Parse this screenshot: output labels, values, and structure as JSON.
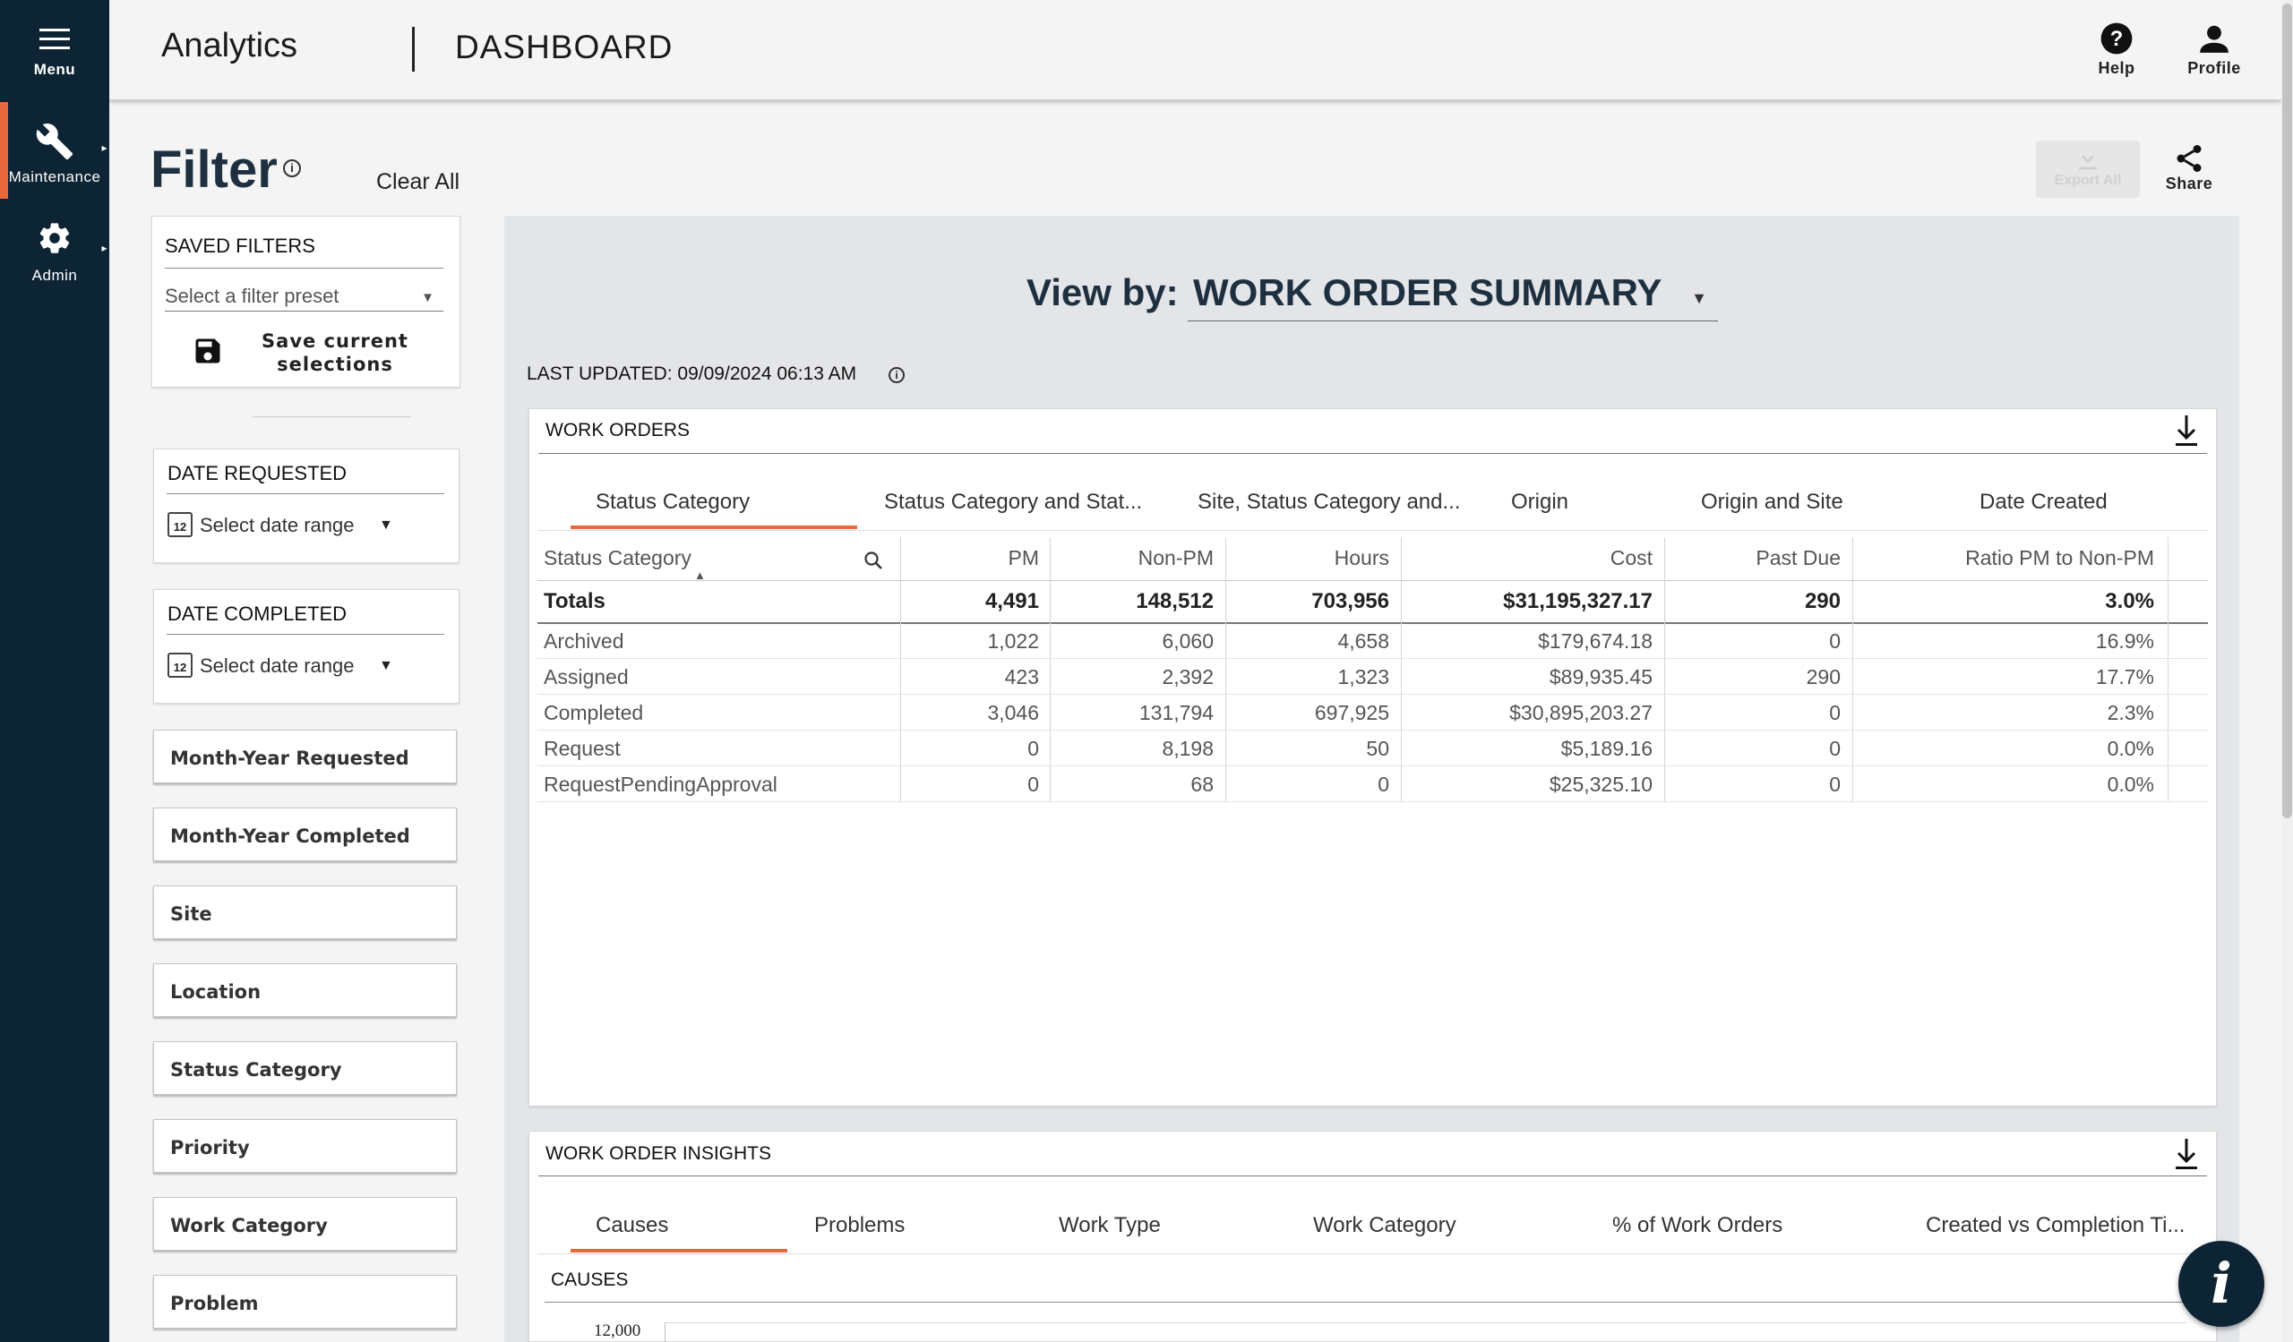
{
  "nav": {
    "menu": "Menu",
    "items": [
      {
        "label": "Maintenance",
        "icon": "wrench-icon"
      },
      {
        "label": "Admin",
        "icon": "gear-icon"
      }
    ]
  },
  "header": {
    "app_title": "Analytics",
    "page_title": "DASHBOARD",
    "help_label": "Help",
    "profile_label": "Profile"
  },
  "filter": {
    "title": "Filter",
    "clear_all": "Clear All",
    "saved_filters": {
      "heading": "SAVED FILTERS",
      "placeholder": "Select a filter preset",
      "save_label_1": "Save current",
      "save_label_2": "selections"
    },
    "date_requested": {
      "heading": "DATE REQUESTED",
      "placeholder": "Select date range"
    },
    "date_completed": {
      "heading": "DATE COMPLETED",
      "placeholder": "Select date range"
    },
    "fields": [
      "Month-Year Requested",
      "Month-Year Completed",
      "Site",
      "Location",
      "Status Category",
      "Priority",
      "Work Category",
      "Problem"
    ]
  },
  "toolbar": {
    "export_all": "Export All",
    "share": "Share"
  },
  "view_by": {
    "label": "View by:",
    "value": "WORK ORDER SUMMARY"
  },
  "last_updated": "LAST UPDATED: 09/09/2024 06:13 AM",
  "work_orders": {
    "title": "WORK ORDERS",
    "tabs": [
      "Status Category",
      "Status Category and Stat...",
      "Site, Status Category and...",
      "Origin",
      "Origin and Site",
      "Date Created"
    ],
    "columns": [
      "Status Category",
      "PM",
      "Non-PM",
      "Hours",
      "Cost",
      "Past Due",
      "Ratio PM to Non-PM"
    ],
    "totals": [
      "Totals",
      "4,491",
      "148,512",
      "703,956",
      "$31,195,327.17",
      "290",
      "3.0%"
    ],
    "rows": [
      [
        "Archived",
        "1,022",
        "6,060",
        "4,658",
        "$179,674.18",
        "0",
        "16.9%"
      ],
      [
        "Assigned",
        "423",
        "2,392",
        "1,323",
        "$89,935.45",
        "290",
        "17.7%"
      ],
      [
        "Completed",
        "3,046",
        "131,794",
        "697,925",
        "$30,895,203.27",
        "0",
        "2.3%"
      ],
      [
        "Request",
        "0",
        "8,198",
        "50",
        "$5,189.16",
        "0",
        "0.0%"
      ],
      [
        "RequestPendingApproval",
        "0",
        "68",
        "0",
        "$25,325.10",
        "0",
        "0.0%"
      ]
    ]
  },
  "insights": {
    "title": "WORK ORDER INSIGHTS",
    "tabs": [
      "Causes",
      "Problems",
      "Work Type",
      "Work Category",
      "% of Work Orders",
      "Created vs Completion Ti..."
    ],
    "subtitle": "CAUSES",
    "chart_tick": "12,000"
  },
  "colors": {
    "sidebar": "#0d2434",
    "accent": "#e8673b",
    "panel": "#e3e5e8"
  }
}
